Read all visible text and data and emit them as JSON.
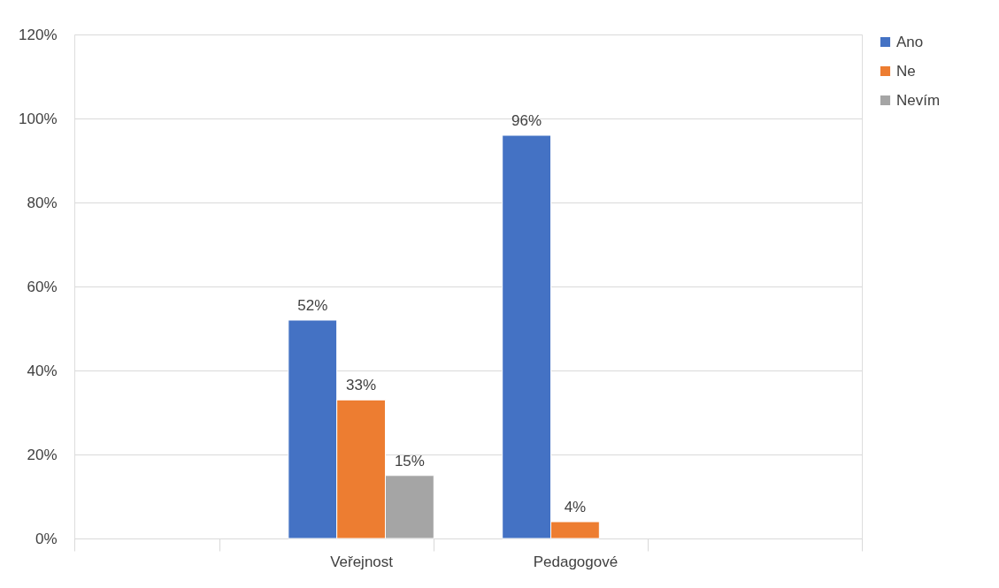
{
  "chart_data": {
    "type": "bar",
    "categories": [
      null,
      "Veřejnost",
      "Pedagogové",
      null
    ],
    "series": [
      {
        "name": "Ano",
        "color": "#4472c4",
        "values": [
          null,
          52,
          96,
          null
        ],
        "value_labels": [
          null,
          "52%",
          "96%",
          null
        ]
      },
      {
        "name": "Ne",
        "color": "#ed7d31",
        "values": [
          null,
          33,
          4,
          null
        ],
        "value_labels": [
          null,
          "33%",
          "4%",
          null
        ]
      },
      {
        "name": "Nevím",
        "color": "#a5a5a5",
        "values": [
          null,
          15,
          null,
          null
        ],
        "value_labels": [
          null,
          "15%",
          null,
          null
        ]
      }
    ],
    "ylim": [
      0,
      120
    ],
    "yticks": [
      {
        "value": 0,
        "label": "0%"
      },
      {
        "value": 20,
        "label": "20%"
      },
      {
        "value": 40,
        "label": "40%"
      },
      {
        "value": 60,
        "label": "60%"
      },
      {
        "value": 80,
        "label": "80%"
      },
      {
        "value": 100,
        "label": "100%"
      },
      {
        "value": 120,
        "label": "120%"
      }
    ],
    "grid": "y",
    "legend": "right"
  }
}
